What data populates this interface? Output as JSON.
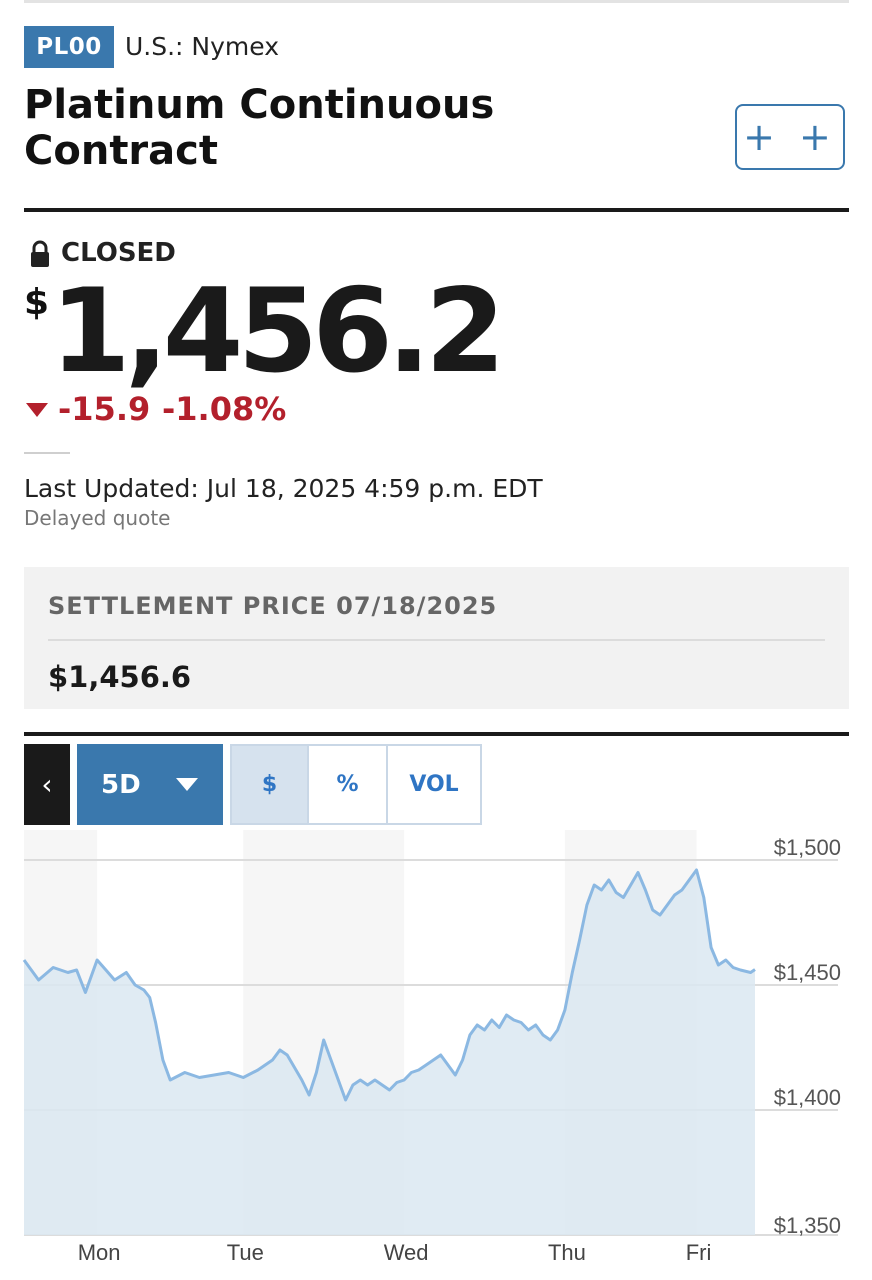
{
  "header": {
    "symbol": "PL00",
    "exchange": "U.S.: Nymex",
    "title": "Platinum Continuous Contract",
    "watchlist_label": "+ +"
  },
  "quote": {
    "status": "CLOSED",
    "currency_symbol": "$",
    "price": "1,456.2",
    "change": "-15.9",
    "change_percent": "-1.08%",
    "direction": "down",
    "last_updated": "Last Updated: Jul 18, 2025 4:59 p.m. EDT",
    "delay_note": "Delayed quote"
  },
  "settlement": {
    "label": "SETTLEMENT PRICE 07/18/2025",
    "value": "$1,456.6"
  },
  "chart_controls": {
    "back_label": "‹",
    "range_label": "5D",
    "toggles": [
      "$",
      "%",
      "VOL"
    ],
    "active_toggle": "$"
  },
  "colors": {
    "brand_blue": "#3a78ad",
    "down_red": "#b3202c",
    "line": "#8bb8e2",
    "area": "#dbe7f1"
  },
  "chart_data": {
    "type": "area",
    "x_labels": [
      "Mon",
      "Tue",
      "Wed",
      "Thu",
      "Fri"
    ],
    "y_ticks": [
      "$1,500",
      "$1,450",
      "$1,400",
      "$1,350"
    ],
    "ylim": [
      1350,
      1500
    ],
    "grid": true,
    "series": [
      {
        "values": [
          [
            0.0,
            1460
          ],
          [
            0.1,
            1452
          ],
          [
            0.2,
            1457
          ],
          [
            0.3,
            1455
          ],
          [
            0.36,
            1456
          ],
          [
            0.42,
            1447
          ],
          [
            0.5,
            1460
          ],
          [
            0.56,
            1456
          ],
          [
            0.62,
            1452
          ],
          [
            0.7,
            1455
          ],
          [
            0.76,
            1450
          ],
          [
            0.82,
            1448
          ],
          [
            0.86,
            1445
          ],
          [
            0.9,
            1435
          ],
          [
            0.95,
            1420
          ],
          [
            1.0,
            1412
          ],
          [
            1.1,
            1415
          ],
          [
            1.2,
            1413
          ],
          [
            1.3,
            1414
          ],
          [
            1.4,
            1415
          ],
          [
            1.5,
            1413
          ],
          [
            1.6,
            1416
          ],
          [
            1.7,
            1420
          ],
          [
            1.75,
            1424
          ],
          [
            1.8,
            1422
          ],
          [
            1.85,
            1417
          ],
          [
            1.9,
            1412
          ],
          [
            1.95,
            1406
          ],
          [
            2.0,
            1415
          ],
          [
            2.05,
            1428
          ],
          [
            2.1,
            1420
          ],
          [
            2.15,
            1412
          ],
          [
            2.2,
            1404
          ],
          [
            2.25,
            1410
          ],
          [
            2.3,
            1412
          ],
          [
            2.35,
            1410
          ],
          [
            2.4,
            1412
          ],
          [
            2.45,
            1410
          ],
          [
            2.5,
            1408
          ],
          [
            2.55,
            1411
          ],
          [
            2.6,
            1412
          ],
          [
            2.65,
            1415
          ],
          [
            2.7,
            1416
          ],
          [
            2.75,
            1418
          ],
          [
            2.8,
            1420
          ],
          [
            2.85,
            1422
          ],
          [
            2.9,
            1418
          ],
          [
            2.95,
            1414
          ],
          [
            3.0,
            1420
          ],
          [
            3.05,
            1430
          ],
          [
            3.1,
            1434
          ],
          [
            3.15,
            1432
          ],
          [
            3.2,
            1436
          ],
          [
            3.25,
            1433
          ],
          [
            3.3,
            1438
          ],
          [
            3.35,
            1436
          ],
          [
            3.4,
            1435
          ],
          [
            3.45,
            1432
          ],
          [
            3.5,
            1434
          ],
          [
            3.55,
            1430
          ],
          [
            3.6,
            1428
          ],
          [
            3.65,
            1432
          ],
          [
            3.7,
            1440
          ],
          [
            3.75,
            1455
          ],
          [
            3.8,
            1468
          ],
          [
            3.85,
            1482
          ],
          [
            3.9,
            1490
          ],
          [
            3.95,
            1488
          ],
          [
            4.0,
            1492
          ],
          [
            4.05,
            1487
          ],
          [
            4.1,
            1485
          ],
          [
            4.15,
            1490
          ],
          [
            4.2,
            1495
          ],
          [
            4.25,
            1488
          ],
          [
            4.3,
            1480
          ],
          [
            4.35,
            1478
          ],
          [
            4.4,
            1482
          ],
          [
            4.45,
            1486
          ],
          [
            4.5,
            1488
          ],
          [
            4.55,
            1492
          ],
          [
            4.6,
            1496
          ],
          [
            4.65,
            1485
          ],
          [
            4.7,
            1465
          ],
          [
            4.75,
            1458
          ],
          [
            4.8,
            1460
          ],
          [
            4.85,
            1457
          ],
          [
            4.9,
            1456
          ],
          [
            4.97,
            1455
          ],
          [
            5.0,
            1456.2
          ]
        ]
      }
    ]
  }
}
